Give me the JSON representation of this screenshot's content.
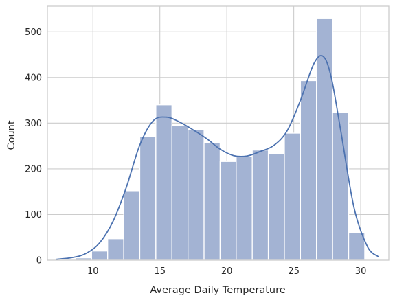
{
  "chart_data": {
    "type": "bar",
    "title": "",
    "xlabel": "Average Daily Temperature",
    "ylabel": "Count",
    "xlim": [
      6.6,
      32.1
    ],
    "ylim": [
      0,
      556
    ],
    "grid": true,
    "legend": "none",
    "x_ticks": [
      10,
      15,
      20,
      25,
      30
    ],
    "y_ticks": [
      0,
      100,
      200,
      300,
      400,
      500
    ],
    "bin_start": 7.5,
    "bin_width": 1.2,
    "values": [
      2,
      5,
      20,
      47,
      152,
      270,
      340,
      295,
      285,
      257,
      216,
      227,
      241,
      233,
      278,
      393,
      530,
      323,
      60
    ],
    "kde": {
      "x": [
        7.3,
        8.5,
        9.5,
        10.5,
        11.5,
        12.5,
        13.5,
        14.5,
        15.5,
        16.5,
        17.5,
        18.5,
        19.5,
        20.5,
        21.5,
        22.5,
        23.5,
        24.5,
        25.5,
        26.5,
        27.2,
        27.8,
        28.5,
        29.5,
        30.5,
        31.3
      ],
      "y": [
        2,
        6,
        15,
        38,
        85,
        160,
        252,
        305,
        313,
        302,
        285,
        266,
        243,
        229,
        228,
        238,
        251,
        283,
        350,
        430,
        446,
        400,
        285,
        115,
        30,
        8
      ]
    },
    "colors": {
      "bar_fill": "#a3b3d3",
      "bar_edge": "#ffffff",
      "kde_line": "#4c72b0",
      "grid": "#cccccc",
      "spine": "#cccccc"
    }
  }
}
